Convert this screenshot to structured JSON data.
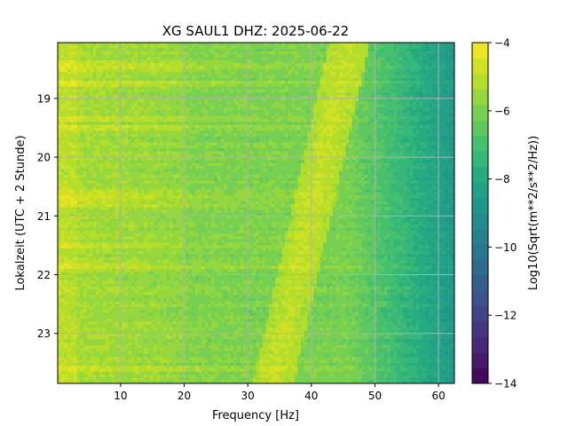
{
  "chart_data": {
    "type": "heatmap",
    "title": "XG SAUL1  DHZ: 2025-06-22",
    "xlabel": "Frequency [Hz]",
    "ylabel": "Lokalzeit (UTC + 2 Stunde)",
    "colorbar_label": "Log10(Sqrt(m**2/s**2/Hz))",
    "xlim": [
      0.1,
      62.5
    ],
    "ylim": [
      18.05,
      23.85
    ],
    "y_inverted": true,
    "clim": [
      -14,
      -4
    ],
    "colormap": "viridis",
    "grid": true,
    "x_ticks": [
      10,
      20,
      30,
      40,
      50,
      60
    ],
    "y_ticks": [
      19,
      20,
      21,
      22,
      23
    ],
    "colorbar_ticks": [
      -4,
      -6,
      -8,
      -10,
      -12,
      -14
    ],
    "x_tick_labels": [
      "10",
      "20",
      "30",
      "40",
      "50",
      "60"
    ],
    "y_tick_labels": [
      "19",
      "20",
      "21",
      "22",
      "23"
    ],
    "colorbar_tick_labels": [
      "−4",
      "−6",
      "−8",
      "−10",
      "−12",
      "−14"
    ],
    "colorbar_levels": 22,
    "features": {
      "background_level_low_freq": -5.3,
      "background_level_mid_freq": -5.9,
      "background_level_high_freq": -8.5,
      "rolloff_start_hz": 46,
      "drift_line": {
        "start": {
          "time": 18.05,
          "freq_hz": 46
        },
        "end": {
          "time": 23.85,
          "freq_hz": 34
        },
        "level": -4.9
      },
      "energetic_rows_time": [
        18.4,
        18.5,
        18.75,
        19.35,
        19.5,
        20.6,
        20.7,
        20.8,
        21.5,
        21.85,
        23.6
      ]
    }
  }
}
